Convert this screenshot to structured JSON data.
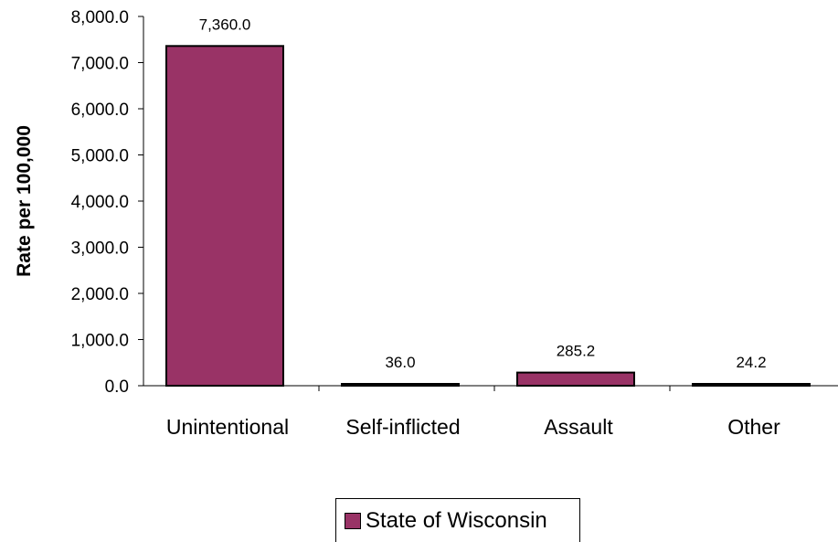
{
  "chart_data": {
    "type": "bar",
    "categories": [
      "Unintentional",
      "Self-inflicted",
      "Assault",
      "Other"
    ],
    "series": [
      {
        "name": "State of Wisconsin",
        "values": [
          7360.0,
          36.0,
          285.2,
          24.2
        ],
        "color": "#993366"
      }
    ],
    "data_labels": [
      "7,360.0",
      "36.0",
      "285.2",
      "24.2"
    ],
    "ylabel": "Rate per 100,000",
    "xlabel": "",
    "ylim": [
      0,
      8000
    ],
    "yticks": [
      "0.0",
      "1,000.0",
      "2,000.0",
      "3,000.0",
      "4,000.0",
      "5,000.0",
      "6,000.0",
      "7,000.0",
      "8,000.0"
    ],
    "ytick_values": [
      0,
      1000,
      2000,
      3000,
      4000,
      5000,
      6000,
      7000,
      8000
    ],
    "grid": false,
    "legend_position": "bottom"
  }
}
